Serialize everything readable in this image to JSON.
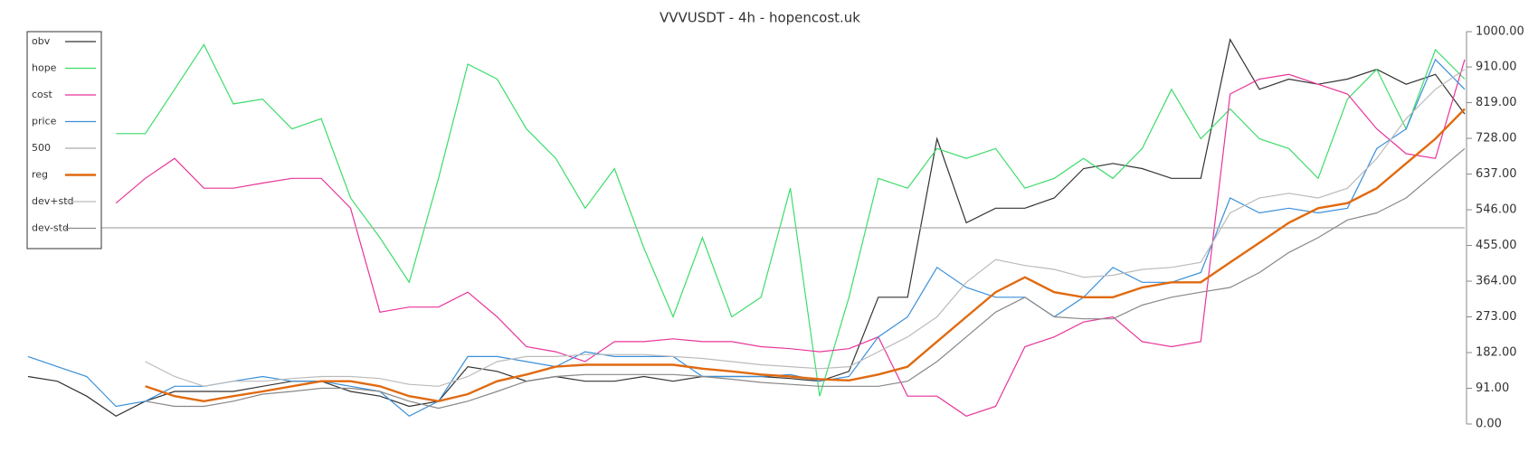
{
  "chart_data": {
    "type": "line",
    "title": "VVVUSDT - 4h - hopencost.uk",
    "ylim": [
      0,
      1000
    ],
    "yticks": [
      {
        "value": 0,
        "label": "0.00"
      },
      {
        "value": 91,
        "label": "91.00"
      },
      {
        "value": 182,
        "label": "182.00"
      },
      {
        "value": 273,
        "label": "273.00"
      },
      {
        "value": 364,
        "label": "364.00"
      },
      {
        "value": 455,
        "label": "455.00"
      },
      {
        "value": 546,
        "label": "546.00"
      },
      {
        "value": 637,
        "label": "637.00"
      },
      {
        "value": 728,
        "label": "728.00"
      },
      {
        "value": 819,
        "label": "819.00"
      },
      {
        "value": 910,
        "label": "910.00"
      },
      {
        "value": 1000,
        "label": "1000.00"
      }
    ],
    "legend": "upper left",
    "series": [
      {
        "name": "obv",
        "color": "#333333",
        "width": 1.2,
        "values": [
          121,
          109,
          71,
          20,
          58,
          83,
          83,
          83,
          96,
          109,
          109,
          83,
          71,
          45,
          58,
          146,
          134,
          109,
          121,
          109,
          109,
          121,
          109,
          121,
          121,
          121,
          116,
          109,
          134,
          323,
          323,
          727,
          513,
          550,
          550,
          576,
          651,
          664,
          651,
          626,
          626,
          980,
          853,
          879,
          866,
          879,
          904,
          866,
          891,
          790
        ]
      },
      {
        "name": "hope",
        "color": "#3ddc6b",
        "width": 1.2,
        "values": [
          null,
          null,
          null,
          740,
          740,
          853,
          967,
          816,
          828,
          752,
          778,
          576,
          475,
          361,
          626,
          917,
          879,
          752,
          677,
          550,
          651,
          449,
          273,
          475,
          273,
          323,
          601,
          71,
          323,
          626,
          601,
          702,
          677,
          702,
          601,
          626,
          677,
          626,
          702,
          853,
          727,
          803,
          727,
          702,
          626,
          828,
          904,
          752,
          954,
          879
        ]
      },
      {
        "name": "cost",
        "color": "#e8359a",
        "width": 1.2,
        "values": [
          null,
          null,
          null,
          563,
          626,
          677,
          601,
          601,
          614,
          626,
          626,
          550,
          285,
          298,
          298,
          336,
          273,
          197,
          184,
          159,
          210,
          210,
          217,
          210,
          210,
          197,
          192,
          184,
          192,
          222,
          71,
          71,
          20,
          45,
          197,
          222,
          260,
          273,
          210,
          197,
          210,
          841,
          879,
          891,
          866,
          841,
          752,
          689,
          677,
          929
        ]
      },
      {
        "name": "price",
        "color": "#3a8fd9",
        "width": 1.2,
        "values": [
          172,
          146,
          121,
          45,
          58,
          96,
          96,
          109,
          121,
          109,
          109,
          96,
          83,
          20,
          58,
          172,
          172,
          159,
          146,
          184,
          172,
          172,
          172,
          121,
          121,
          121,
          126,
          109,
          121,
          222,
          273,
          399,
          348,
          323,
          323,
          273,
          323,
          399,
          361,
          361,
          386,
          576,
          538,
          550,
          538,
          550,
          702,
          752,
          929,
          853
        ]
      },
      {
        "name": "500",
        "color": "#aaaaaa",
        "width": 1.2,
        "values": [
          500,
          500,
          500,
          500,
          500,
          500,
          500,
          500,
          500,
          500,
          500,
          500,
          500,
          500,
          500,
          500,
          500,
          500,
          500,
          500,
          500,
          500,
          500,
          500,
          500,
          500,
          500,
          500,
          500,
          500,
          500,
          500,
          500,
          500,
          500,
          500,
          500,
          500,
          500,
          500,
          500,
          500,
          500,
          500,
          500,
          500,
          500,
          500,
          500,
          500
        ]
      },
      {
        "name": "reg",
        "color": "#e06a10",
        "width": 2.4,
        "values": [
          null,
          null,
          null,
          null,
          96,
          71,
          58,
          71,
          83,
          96,
          109,
          109,
          96,
          71,
          58,
          76,
          109,
          126,
          146,
          151,
          151,
          151,
          151,
          141,
          134,
          126,
          121,
          114,
          111,
          126,
          146,
          210,
          273,
          336,
          374,
          336,
          323,
          323,
          348,
          361,
          361,
          412,
          462,
          513,
          550,
          563,
          601,
          664,
          727,
          803
        ]
      },
      {
        "name": "dev+std",
        "color": "#bbbbbb",
        "width": 1.2,
        "values": [
          null,
          null,
          null,
          null,
          159,
          121,
          96,
          109,
          109,
          116,
          121,
          121,
          116,
          101,
          96,
          121,
          159,
          172,
          172,
          177,
          177,
          177,
          172,
          167,
          159,
          151,
          146,
          141,
          146,
          184,
          222,
          273,
          361,
          419,
          404,
          394,
          374,
          379,
          394,
          399,
          412,
          538,
          576,
          588,
          576,
          601,
          677,
          778,
          853,
          904
        ]
      },
      {
        "name": "dev-std",
        "color": "#888888",
        "width": 1.2,
        "values": [
          null,
          null,
          null,
          null,
          58,
          45,
          45,
          58,
          76,
          83,
          91,
          91,
          83,
          58,
          40,
          58,
          83,
          109,
          121,
          126,
          126,
          126,
          126,
          121,
          114,
          106,
          101,
          96,
          96,
          96,
          109,
          159,
          222,
          285,
          323,
          273,
          268,
          268,
          303,
          323,
          336,
          348,
          386,
          437,
          475,
          520,
          538,
          576,
          639,
          702
        ]
      }
    ]
  }
}
